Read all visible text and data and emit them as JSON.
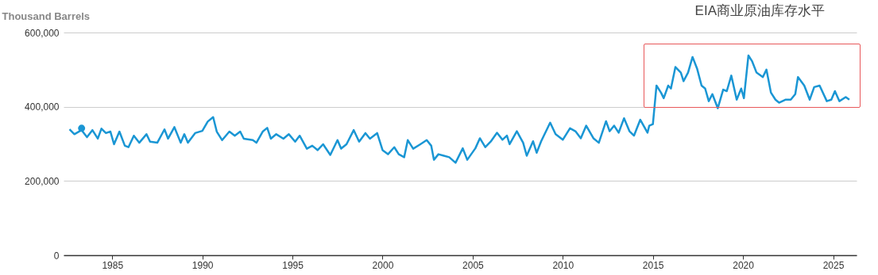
{
  "chart_data": {
    "type": "line",
    "title": "EIA商业原油库存水平",
    "ylabel": "Thousand Barrels",
    "xlim": [
      1982.3,
      2026.3
    ],
    "xticks": [
      1985,
      1990,
      1995,
      2000,
      2005,
      2010,
      2015,
      2020,
      2025
    ],
    "ylim": [
      0,
      600000
    ],
    "yticks": [
      0,
      {
        "value": 200000,
        "label": "200,000"
      },
      {
        "value": 400000,
        "label": "400,000"
      },
      {
        "value": 600000,
        "label": "600,000"
      }
    ],
    "grid": "y",
    "marker": "none",
    "line_style": "solid",
    "series": [
      {
        "color": "#1a96d4",
        "x": [
          1982.63,
          1982.9,
          1983.3,
          1983.6,
          1983.9,
          1984.2,
          1984.4,
          1984.65,
          1984.9,
          1985.1,
          1985.4,
          1985.7,
          1985.9,
          1986.2,
          1986.5,
          1986.9,
          1987.1,
          1987.5,
          1987.9,
          1988.1,
          1988.45,
          1988.8,
          1989.0,
          1989.2,
          1989.6,
          1990.0,
          1990.3,
          1990.6,
          1990.8,
          1991.1,
          1991.5,
          1991.8,
          1992.1,
          1992.3,
          1992.8,
          1993.0,
          1993.35,
          1993.6,
          1993.8,
          1994.1,
          1994.5,
          1994.8,
          1995.15,
          1995.4,
          1995.8,
          1996.1,
          1996.4,
          1996.7,
          1997.1,
          1997.5,
          1997.7,
          1998.0,
          1998.4,
          1998.7,
          1999.05,
          1999.3,
          1999.7,
          2000.0,
          2000.3,
          2000.65,
          2000.9,
          2001.2,
          2001.4,
          2001.7,
          2002.1,
          2002.45,
          2002.7,
          2002.85,
          2003.1,
          2003.4,
          2003.7,
          2004.05,
          2004.45,
          2004.7,
          2005.15,
          2005.4,
          2005.7,
          2006.0,
          2006.35,
          2006.65,
          2006.9,
          2007.05,
          2007.45,
          2007.8,
          2008.0,
          2008.35,
          2008.55,
          2008.8,
          2009.3,
          2009.6,
          2010.0,
          2010.4,
          2010.7,
          2011.0,
          2011.3,
          2011.7,
          2012.0,
          2012.4,
          2012.6,
          2012.85,
          2013.1,
          2013.4,
          2013.7,
          2013.95,
          2014.3,
          2014.7,
          2014.8,
          2015.0,
          2015.2,
          2015.45,
          2015.6,
          2015.85,
          2016.0,
          2016.25,
          2016.55,
          2016.7,
          2016.95,
          2017.2,
          2017.45,
          2017.7,
          2017.9,
          2018.1,
          2018.3,
          2018.6,
          2018.9,
          2019.1,
          2019.35,
          2019.65,
          2019.9,
          2020.05,
          2020.3,
          2020.5,
          2020.75,
          2021.1,
          2021.3,
          2021.55,
          2021.8,
          2022.0,
          2022.35,
          2022.65,
          2022.9,
          2023.05,
          2023.4,
          2023.7,
          2023.95,
          2024.25,
          2024.65,
          2024.9,
          2025.1,
          2025.35,
          2025.7,
          2025.9
        ],
        "values": [
          339000,
          326000,
          337000,
          318000,
          337000,
          314000,
          341000,
          329000,
          333000,
          299000,
          333000,
          295000,
          291000,
          322000,
          303000,
          326000,
          306000,
          303000,
          339000,
          314000,
          345000,
          303000,
          326000,
          303000,
          329000,
          335000,
          360000,
          372000,
          333000,
          310000,
          333000,
          322000,
          333000,
          314000,
          310000,
          303000,
          333000,
          343000,
          314000,
          326000,
          314000,
          326000,
          306000,
          322000,
          287000,
          295000,
          283000,
          299000,
          270000,
          310000,
          287000,
          299000,
          337000,
          306000,
          329000,
          314000,
          329000,
          283000,
          272000,
          291000,
          272000,
          264000,
          310000,
          287000,
          299000,
          310000,
          295000,
          257000,
          272000,
          268000,
          264000,
          249000,
          288000,
          257000,
          288000,
          315000,
          291000,
          306000,
          330000,
          311000,
          322000,
          299000,
          334000,
          303000,
          268000,
          307000,
          276000,
          307000,
          357000,
          326000,
          311000,
          342000,
          334000,
          315000,
          349000,
          315000,
          303000,
          361000,
          334000,
          349000,
          330000,
          369000,
          334000,
          322000,
          365000,
          330000,
          349000,
          353000,
          457000,
          438000,
          423000,
          457000,
          449000,
          507000,
          492000,
          469000,
          492000,
          534000,
          503000,
          457000,
          449000,
          415000,
          434000,
          396000,
          446000,
          442000,
          484000,
          419000,
          449000,
          423000,
          538000,
          523000,
          492000,
          480000,
          500000,
          438000,
          419000,
          411000,
          419000,
          419000,
          434000,
          480000,
          457000,
          419000,
          453000,
          457000,
          415000,
          419000,
          442000,
          415000,
          426000,
          419000
        ]
      },
      {
        "type": "scatter",
        "marker": "circle",
        "color": "#1a96d4",
        "x": [
          1983.3
        ],
        "values": [
          342000
        ]
      }
    ]
  }
}
